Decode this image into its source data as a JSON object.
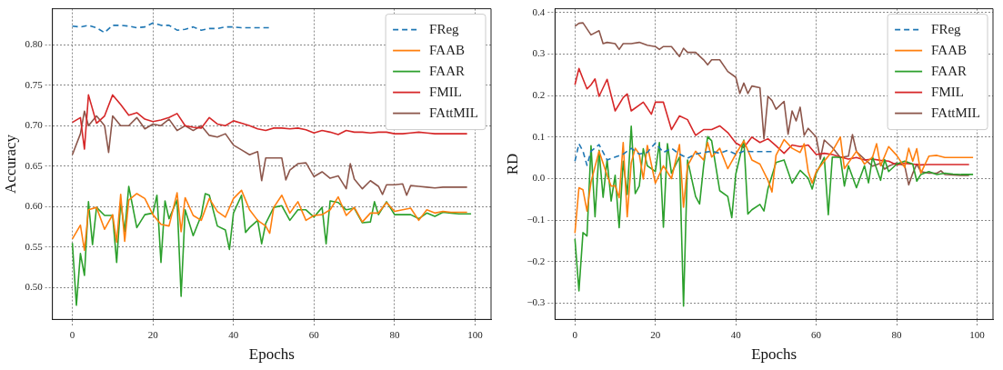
{
  "chart_data": [
    {
      "type": "line",
      "xlabel": "Epochs",
      "ylabel": "Accuracy",
      "xlim": [
        -4.95,
        103.95
      ],
      "ylim": [
        0.4605,
        0.8445
      ],
      "xticks": [
        0,
        20,
        40,
        60,
        80,
        100
      ],
      "yticks": [
        {
          "value": 0.5,
          "label": "0.50"
        },
        {
          "value": 0.55,
          "label": "0.55"
        },
        {
          "value": 0.6,
          "label": "0.60"
        },
        {
          "value": 0.65,
          "label": "0.65"
        },
        {
          "value": 0.7,
          "label": "0.70"
        },
        {
          "value": 0.75,
          "label": "0.75"
        },
        {
          "value": 0.8,
          "label": "0.80"
        }
      ],
      "grid": true,
      "legend": "top right",
      "marker": "none",
      "series": [
        {
          "name": "FReg",
          "color": "#1f77b4",
          "line_style": "dashed",
          "x": [
            0,
            2,
            4,
            6,
            8,
            10,
            12,
            14,
            16,
            18,
            20,
            22,
            24,
            26,
            28,
            30,
            32,
            34,
            36,
            38,
            40,
            42,
            44,
            46,
            48,
            49
          ],
          "values": [
            0.823,
            0.822,
            0.824,
            0.821,
            0.815,
            0.824,
            0.824,
            0.823,
            0.821,
            0.822,
            0.827,
            0.824,
            0.824,
            0.818,
            0.819,
            0.822,
            0.818,
            0.82,
            0.82,
            0.822,
            0.822,
            0.821,
            0.821,
            0.821,
            0.821,
            0.821
          ]
        },
        {
          "name": "FAAB",
          "color": "#ff7f0e",
          "x": [
            0,
            2,
            3,
            4,
            6,
            8,
            10,
            11,
            12,
            13,
            14,
            16,
            18,
            20,
            22,
            24,
            26,
            27,
            28,
            30,
            32,
            34,
            36,
            38,
            40,
            42,
            44,
            46,
            48,
            49,
            50,
            52,
            54,
            56,
            58,
            60,
            62,
            64,
            66,
            68,
            70,
            72,
            74,
            76,
            78,
            80,
            82,
            84,
            86,
            88,
            90,
            92,
            94,
            96,
            98
          ],
          "values": [
            0.56,
            0.577,
            0.546,
            0.596,
            0.599,
            0.572,
            0.59,
            0.556,
            0.615,
            0.557,
            0.608,
            0.616,
            0.61,
            0.59,
            0.578,
            0.576,
            0.617,
            0.569,
            0.611,
            0.589,
            0.583,
            0.61,
            0.594,
            0.587,
            0.61,
            0.62,
            0.596,
            0.583,
            0.576,
            0.567,
            0.599,
            0.614,
            0.592,
            0.606,
            0.583,
            0.589,
            0.59,
            0.596,
            0.612,
            0.589,
            0.599,
            0.581,
            0.592,
            0.592,
            0.605,
            0.594,
            0.596,
            0.598,
            0.583,
            0.596,
            0.592,
            0.594,
            0.593,
            0.593,
            0.593
          ]
        },
        {
          "name": "FAAR",
          "color": "#2ca02c",
          "x": [
            0,
            1,
            2,
            3,
            4,
            5,
            6,
            8,
            10,
            11,
            12,
            13,
            14,
            16,
            18,
            20,
            21,
            22,
            23,
            24,
            26,
            27,
            28,
            30,
            32,
            33,
            34,
            36,
            38,
            39,
            40,
            42,
            43,
            44,
            46,
            47,
            48,
            50,
            52,
            54,
            56,
            58,
            60,
            62,
            63,
            64,
            66,
            68,
            70,
            72,
            74,
            75,
            76,
            78,
            80,
            82,
            84,
            86,
            88,
            90,
            92,
            94,
            96,
            99
          ],
          "values": [
            0.555,
            0.478,
            0.542,
            0.515,
            0.606,
            0.553,
            0.599,
            0.589,
            0.589,
            0.531,
            0.606,
            0.569,
            0.625,
            0.574,
            0.59,
            0.592,
            0.614,
            0.531,
            0.607,
            0.585,
            0.608,
            0.489,
            0.596,
            0.564,
            0.589,
            0.616,
            0.614,
            0.576,
            0.571,
            0.547,
            0.592,
            0.614,
            0.568,
            0.574,
            0.583,
            0.554,
            0.579,
            0.599,
            0.601,
            0.583,
            0.596,
            0.596,
            0.587,
            0.599,
            0.554,
            0.607,
            0.605,
            0.596,
            0.598,
            0.58,
            0.581,
            0.606,
            0.59,
            0.606,
            0.59,
            0.59,
            0.59,
            0.585,
            0.592,
            0.588,
            0.593,
            0.592,
            0.591,
            0.591
          ]
        },
        {
          "name": "FMIL",
          "color": "#d62728",
          "x": [
            0,
            2,
            3,
            4,
            6,
            8,
            10,
            12,
            14,
            16,
            18,
            20,
            22,
            24,
            26,
            28,
            30,
            32,
            34,
            36,
            38,
            40,
            42,
            44,
            46,
            48,
            50,
            52,
            54,
            56,
            58,
            60,
            62,
            64,
            66,
            68,
            70,
            72,
            74,
            76,
            78,
            80,
            82,
            84,
            86,
            88,
            90,
            92,
            94,
            96,
            98
          ],
          "values": [
            0.704,
            0.71,
            0.671,
            0.738,
            0.703,
            0.712,
            0.738,
            0.726,
            0.713,
            0.716,
            0.708,
            0.705,
            0.707,
            0.71,
            0.715,
            0.7,
            0.698,
            0.697,
            0.71,
            0.702,
            0.7,
            0.706,
            0.703,
            0.7,
            0.696,
            0.694,
            0.697,
            0.697,
            0.696,
            0.697,
            0.695,
            0.691,
            0.694,
            0.692,
            0.689,
            0.694,
            0.692,
            0.692,
            0.691,
            0.692,
            0.692,
            0.69,
            0.69,
            0.691,
            0.692,
            0.691,
            0.69,
            0.69,
            0.69,
            0.69,
            0.69
          ]
        },
        {
          "name": "FAttMIL",
          "color": "#8c564b",
          "x": [
            0,
            2,
            3,
            4,
            6,
            8,
            9,
            10,
            12,
            14,
            16,
            18,
            20,
            22,
            24,
            26,
            28,
            30,
            32,
            34,
            36,
            38,
            40,
            42,
            44,
            46,
            47,
            48,
            50,
            52,
            53,
            54,
            56,
            58,
            60,
            62,
            64,
            66,
            68,
            69,
            70,
            72,
            74,
            76,
            77,
            78,
            80,
            82,
            83,
            84,
            86,
            88,
            90,
            92,
            94,
            96,
            98
          ],
          "values": [
            0.664,
            0.69,
            0.718,
            0.7,
            0.712,
            0.7,
            0.667,
            0.712,
            0.7,
            0.7,
            0.71,
            0.696,
            0.702,
            0.7,
            0.708,
            0.694,
            0.7,
            0.694,
            0.7,
            0.688,
            0.686,
            0.69,
            0.676,
            0.67,
            0.664,
            0.668,
            0.632,
            0.66,
            0.66,
            0.66,
            0.633,
            0.645,
            0.653,
            0.654,
            0.637,
            0.643,
            0.635,
            0.638,
            0.622,
            0.653,
            0.634,
            0.622,
            0.632,
            0.625,
            0.615,
            0.627,
            0.627,
            0.628,
            0.614,
            0.626,
            0.625,
            0.624,
            0.623,
            0.624,
            0.624,
            0.624,
            0.624
          ]
        }
      ]
    },
    {
      "type": "line",
      "xlabel": "Epochs",
      "ylabel": "RD",
      "xlim": [
        -4.95,
        103.95
      ],
      "ylim": [
        -0.339,
        0.409
      ],
      "xticks": [
        0,
        20,
        40,
        60,
        80,
        100
      ],
      "yticks": [
        {
          "value": -0.3,
          "label": "−0.3"
        },
        {
          "value": -0.2,
          "label": "−0.2"
        },
        {
          "value": -0.1,
          "label": "−0.1"
        },
        {
          "value": 0,
          "label": "0.0"
        },
        0.1,
        0.2,
        0.3,
        0.4
      ],
      "grid": true,
      "legend": "top right",
      "marker": "none",
      "series": [
        {
          "name": "FReg",
          "color": "#1f77b4",
          "line_style": "dashed",
          "x": [
            0,
            1,
            2,
            3,
            4,
            6,
            8,
            10,
            12,
            14,
            16,
            18,
            20,
            22,
            24,
            26,
            28,
            30,
            32,
            34,
            36,
            38,
            40,
            42,
            44,
            46,
            48,
            49
          ],
          "values": [
            0.042,
            0.084,
            0.066,
            0.032,
            0.066,
            0.082,
            0.045,
            0.052,
            0.059,
            0.073,
            0.059,
            0.063,
            0.086,
            0.063,
            0.073,
            0.059,
            0.049,
            0.059,
            0.063,
            0.066,
            0.061,
            0.068,
            0.059,
            0.066,
            0.065,
            0.065,
            0.065,
            0.065
          ]
        },
        {
          "name": "FAAB",
          "color": "#ff7f0e",
          "x": [
            0,
            1,
            2,
            3,
            4,
            6,
            8,
            9,
            10,
            11,
            12,
            13,
            14,
            15,
            16,
            17,
            18,
            20,
            22,
            24,
            26,
            27,
            28,
            30,
            32,
            33,
            34,
            36,
            38,
            40,
            42,
            44,
            46,
            48,
            49,
            50,
            52,
            54,
            56,
            57,
            58,
            59,
            60,
            62,
            64,
            66,
            67,
            68,
            70,
            72,
            74,
            75,
            76,
            78,
            80,
            82,
            83,
            84,
            85,
            86,
            88,
            90,
            92,
            94,
            96,
            99
          ],
          "values": [
            -0.131,
            -0.022,
            -0.027,
            -0.078,
            -0.008,
            0.066,
            0.008,
            -0.018,
            -0.017,
            -0.046,
            0.087,
            -0.092,
            0.038,
            0.073,
            0.059,
            -0.001,
            0.08,
            -0.011,
            0.031,
            0,
            0.082,
            -0.069,
            0.031,
            0.066,
            0.045,
            0.087,
            0.052,
            0.073,
            0.024,
            0.059,
            0.091,
            0.045,
            0.035,
            -0.004,
            -0.032,
            0.056,
            0.094,
            0.073,
            0.063,
            0.084,
            0.017,
            -0.011,
            0.017,
            0.042,
            0.066,
            0.1,
            0.024,
            0.038,
            0.066,
            0.035,
            0.052,
            0.084,
            0.031,
            0.077,
            0.056,
            0.027,
            0.073,
            0.042,
            0.072,
            0.013,
            0.054,
            0.056,
            0.051,
            0.051,
            0.051,
            0.051
          ]
        },
        {
          "name": "FAAR",
          "color": "#2ca02c",
          "x": [
            0,
            1,
            2,
            3,
            4,
            5,
            6,
            7,
            8,
            9,
            10,
            11,
            12,
            13,
            14,
            15,
            16,
            17,
            18,
            20,
            21,
            22,
            23,
            24,
            26,
            27,
            28,
            30,
            31,
            32,
            33,
            34,
            36,
            38,
            39,
            40,
            42,
            43,
            44,
            46,
            47,
            48,
            50,
            52,
            54,
            56,
            58,
            59,
            60,
            62,
            63,
            64,
            66,
            67,
            68,
            70,
            72,
            73,
            74,
            76,
            77,
            78,
            80,
            82,
            84,
            85,
            86,
            88,
            90,
            92,
            94,
            96,
            99
          ],
          "values": [
            -0.145,
            -0.27,
            -0.13,
            -0.138,
            0.079,
            -0.092,
            0.068,
            -0.045,
            0.046,
            -0.054,
            0.008,
            -0.118,
            0.042,
            -0.038,
            0.126,
            -0.036,
            -0.018,
            0.072,
            0.031,
            0.017,
            0.087,
            -0.117,
            0.084,
            0.013,
            0.052,
            -0.307,
            0.045,
            -0.043,
            -0.061,
            0.031,
            0.101,
            0.091,
            -0.029,
            -0.043,
            -0.094,
            0.011,
            0.093,
            -0.085,
            -0.075,
            -0.062,
            -0.078,
            -0.024,
            0.039,
            0.045,
            -0.011,
            0.02,
            0.001,
            -0.025,
            0.013,
            0.051,
            -0.087,
            0.052,
            0.051,
            -0.018,
            0.031,
            -0.022,
            0.031,
            -0.01,
            0.052,
            -0.004,
            0.046,
            0.017,
            0.035,
            0.042,
            0.035,
            -0.006,
            0.01,
            0.017,
            0.01,
            0.013,
            0.011,
            0.01,
            0.01
          ]
        },
        {
          "name": "FMIL",
          "color": "#d62728",
          "x": [
            0,
            1,
            2,
            3,
            4,
            5,
            6,
            8,
            10,
            12,
            13,
            14,
            16,
            17,
            18,
            19,
            20,
            22,
            24,
            26,
            28,
            30,
            32,
            34,
            36,
            38,
            40,
            42,
            44,
            46,
            48,
            50,
            52,
            54,
            56,
            58,
            60,
            62,
            64,
            66,
            68,
            70,
            72,
            74,
            76,
            78,
            80,
            82,
            84,
            86,
            88,
            90,
            92,
            94,
            96,
            98
          ],
          "values": [
            0.226,
            0.265,
            0.24,
            0.216,
            0.226,
            0.24,
            0.198,
            0.239,
            0.163,
            0.195,
            0.204,
            0.163,
            0.177,
            0.184,
            0.17,
            0.155,
            0.184,
            0.184,
            0.118,
            0.151,
            0.142,
            0.104,
            0.118,
            0.118,
            0.127,
            0.111,
            0.086,
            0.075,
            0.1,
            0.087,
            0.096,
            0.079,
            0.061,
            0.081,
            0.077,
            0.081,
            0.058,
            0.061,
            0.058,
            0.052,
            0.047,
            0.051,
            0.045,
            0.047,
            0.044,
            0.042,
            0.033,
            0.037,
            0.035,
            0.033,
            0.034,
            0.034,
            0.034,
            0.034,
            0.034,
            0.034
          ]
        },
        {
          "name": "FAttMIL",
          "color": "#8c564b",
          "x": [
            0,
            1,
            2,
            4,
            6,
            7,
            8,
            10,
            11,
            12,
            14,
            16,
            18,
            20,
            21,
            22,
            24,
            26,
            27,
            28,
            30,
            32,
            33,
            34,
            36,
            38,
            40,
            41,
            42,
            43,
            44,
            46,
            47,
            48,
            49,
            50,
            52,
            53,
            54,
            55,
            56,
            57,
            58,
            60,
            61,
            62,
            64,
            66,
            68,
            69,
            70,
            72,
            74,
            76,
            77,
            78,
            80,
            82,
            83,
            84,
            85,
            86,
            88,
            90,
            91,
            92,
            94,
            96,
            98
          ],
          "values": [
            0.367,
            0.374,
            0.375,
            0.346,
            0.356,
            0.325,
            0.328,
            0.325,
            0.311,
            0.325,
            0.325,
            0.328,
            0.321,
            0.318,
            0.311,
            0.318,
            0.318,
            0.294,
            0.314,
            0.304,
            0.304,
            0.286,
            0.274,
            0.286,
            0.286,
            0.258,
            0.244,
            0.205,
            0.23,
            0.205,
            0.223,
            0.219,
            0.096,
            0.198,
            0.188,
            0.167,
            0.186,
            0.107,
            0.163,
            0.139,
            0.172,
            0.104,
            0.121,
            0.1,
            0.047,
            0.093,
            0.075,
            0.051,
            0.054,
            0.106,
            0.065,
            0.047,
            0.03,
            0.037,
            0.023,
            0.03,
            0.038,
            0.031,
            -0.015,
            0.013,
            0.035,
            0.017,
            0.013,
            0.013,
            0.019,
            0.01,
            0.009,
            0.008,
            0.008
          ]
        }
      ]
    }
  ]
}
